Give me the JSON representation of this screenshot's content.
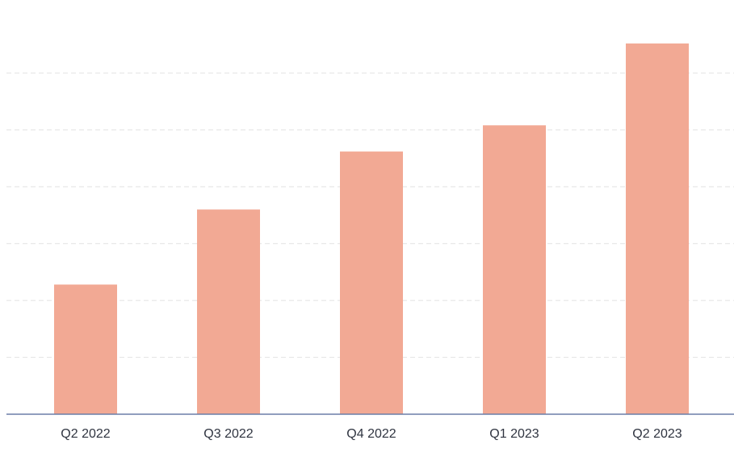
{
  "chart_data": {
    "type": "bar",
    "categories": [
      "Q2 2022",
      "Q3 2022",
      "Q4 2022",
      "Q1 2023",
      "Q2 2023"
    ],
    "values": [
      22.8,
      36.0,
      46.2,
      50.8,
      65.2
    ],
    "ylim": [
      0,
      70
    ],
    "gridline_values": [
      10,
      20,
      30,
      40,
      50,
      60
    ],
    "grid": true,
    "bar_color": "#f2a994",
    "baseline_color": "#6b7fa8",
    "title": "",
    "xlabel": "",
    "ylabel": ""
  }
}
